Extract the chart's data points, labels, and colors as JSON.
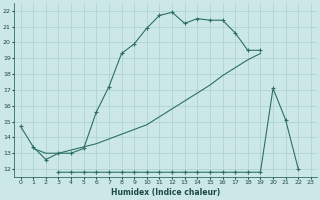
{
  "xlabel": "Humidex (Indice chaleur)",
  "bg_color": "#cce8e6",
  "grid_color": "#aacfcd",
  "line_color": "#2e6e68",
  "xlim": [
    -0.5,
    23.5
  ],
  "ylim": [
    11.5,
    22.5
  ],
  "xticks": [
    0,
    1,
    2,
    3,
    4,
    5,
    6,
    7,
    8,
    9,
    10,
    11,
    12,
    13,
    14,
    15,
    16,
    17,
    18,
    19,
    20,
    21,
    22,
    23
  ],
  "yticks": [
    12,
    13,
    14,
    15,
    16,
    17,
    18,
    19,
    20,
    21,
    22
  ],
  "curve1_x": [
    0,
    1,
    2,
    3,
    4,
    5,
    6,
    7,
    8,
    9,
    10,
    11,
    12,
    13,
    14,
    15,
    16,
    17,
    18,
    19
  ],
  "curve1_y": [
    14.7,
    13.4,
    12.6,
    13.0,
    13.0,
    13.3,
    15.6,
    17.2,
    19.3,
    19.9,
    20.9,
    21.7,
    21.9,
    21.2,
    21.5,
    21.4,
    21.4,
    20.6,
    19.5,
    19.5
  ],
  "curve2_x": [
    1,
    2,
    3,
    4,
    5,
    6,
    7,
    8,
    9,
    10,
    11,
    12,
    13,
    14,
    15,
    16,
    17,
    18,
    19
  ],
  "curve2_y": [
    13.3,
    13.0,
    13.0,
    13.2,
    13.4,
    13.6,
    13.9,
    14.2,
    14.5,
    14.8,
    15.3,
    15.8,
    16.3,
    16.8,
    17.3,
    17.9,
    18.4,
    18.9,
    19.3
  ],
  "curve3_x": [
    3,
    4,
    5,
    6,
    7,
    8,
    9,
    10,
    11,
    12,
    13,
    14,
    15,
    16,
    17,
    18,
    19,
    20,
    21,
    22
  ],
  "curve3_y": [
    11.8,
    11.8,
    11.8,
    11.8,
    11.8,
    11.8,
    11.8,
    11.8,
    11.8,
    11.8,
    11.8,
    11.8,
    11.8,
    11.8,
    11.8,
    11.8,
    11.8,
    17.1,
    15.1,
    12.0
  ]
}
